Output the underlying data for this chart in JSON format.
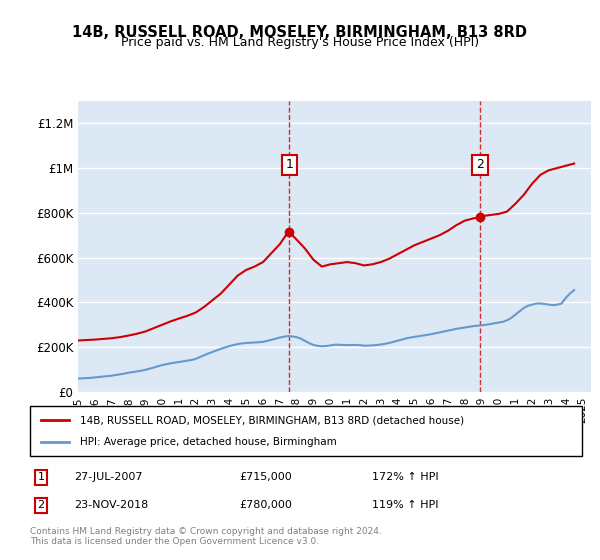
{
  "title": "14B, RUSSELL ROAD, MOSELEY, BIRMINGHAM, B13 8RD",
  "subtitle": "Price paid vs. HM Land Registry's House Price Index (HPI)",
  "ylabel_ticks": [
    "£0",
    "£200K",
    "£400K",
    "£600K",
    "£800K",
    "£1M",
    "£1.2M"
  ],
  "ytick_values": [
    0,
    200000,
    400000,
    600000,
    800000,
    1000000,
    1200000
  ],
  "ylim": [
    0,
    1300000
  ],
  "xlim_start": 1995.0,
  "xlim_end": 2025.5,
  "background_color": "#dde8f5",
  "plot_bg_color": "#dde8f5",
  "grid_color": "#ffffff",
  "sale1_x": 2007.57,
  "sale1_y": 715000,
  "sale1_label": "1",
  "sale1_date": "27-JUL-2007",
  "sale1_price": "£715,000",
  "sale1_hpi": "172% ↑ HPI",
  "sale2_x": 2018.9,
  "sale2_y": 780000,
  "sale2_label": "2",
  "sale2_date": "23-NOV-2018",
  "sale2_price": "£780,000",
  "sale2_hpi": "119% ↑ HPI",
  "line1_color": "#cc0000",
  "line2_color": "#6699cc",
  "legend1": "14B, RUSSELL ROAD, MOSELEY, BIRMINGHAM, B13 8RD (detached house)",
  "legend2": "HPI: Average price, detached house, Birmingham",
  "footer": "Contains HM Land Registry data © Crown copyright and database right 2024.\nThis data is licensed under the Open Government Licence v3.0.",
  "hpi_years": [
    1995.0,
    1995.25,
    1995.5,
    1995.75,
    1996.0,
    1996.25,
    1996.5,
    1996.75,
    1997.0,
    1997.25,
    1997.5,
    1997.75,
    1998.0,
    1998.25,
    1998.5,
    1998.75,
    1999.0,
    1999.25,
    1999.5,
    1999.75,
    2000.0,
    2000.25,
    2000.5,
    2000.75,
    2001.0,
    2001.25,
    2001.5,
    2001.75,
    2002.0,
    2002.25,
    2002.5,
    2002.75,
    2003.0,
    2003.25,
    2003.5,
    2003.75,
    2004.0,
    2004.25,
    2004.5,
    2004.75,
    2005.0,
    2005.25,
    2005.5,
    2005.75,
    2006.0,
    2006.25,
    2006.5,
    2006.75,
    2007.0,
    2007.25,
    2007.5,
    2007.75,
    2008.0,
    2008.25,
    2008.5,
    2008.75,
    2009.0,
    2009.25,
    2009.5,
    2009.75,
    2010.0,
    2010.25,
    2010.5,
    2010.75,
    2011.0,
    2011.25,
    2011.5,
    2011.75,
    2012.0,
    2012.25,
    2012.5,
    2012.75,
    2013.0,
    2013.25,
    2013.5,
    2013.75,
    2014.0,
    2014.25,
    2014.5,
    2014.75,
    2015.0,
    2015.25,
    2015.5,
    2015.75,
    2016.0,
    2016.25,
    2016.5,
    2016.75,
    2017.0,
    2017.25,
    2017.5,
    2017.75,
    2018.0,
    2018.25,
    2018.5,
    2018.75,
    2019.0,
    2019.25,
    2019.5,
    2019.75,
    2020.0,
    2020.25,
    2020.5,
    2020.75,
    2021.0,
    2021.25,
    2021.5,
    2021.75,
    2022.0,
    2022.25,
    2022.5,
    2022.75,
    2023.0,
    2023.25,
    2023.5,
    2023.75,
    2024.0,
    2024.25,
    2024.5
  ],
  "hpi_values": [
    60000,
    61000,
    62000,
    63000,
    65000,
    67000,
    69000,
    71000,
    73000,
    76000,
    79000,
    82000,
    86000,
    89000,
    92000,
    95000,
    99000,
    104000,
    109000,
    115000,
    120000,
    124000,
    128000,
    131000,
    134000,
    137000,
    140000,
    143000,
    148000,
    156000,
    164000,
    172000,
    179000,
    186000,
    193000,
    199000,
    205000,
    210000,
    214000,
    217000,
    219000,
    220000,
    221000,
    222000,
    224000,
    228000,
    233000,
    238000,
    243000,
    247000,
    250000,
    248000,
    245000,
    238000,
    228000,
    218000,
    210000,
    206000,
    204000,
    205000,
    208000,
    211000,
    211000,
    210000,
    209000,
    210000,
    210000,
    209000,
    207000,
    207000,
    208000,
    210000,
    212000,
    215000,
    219000,
    224000,
    229000,
    234000,
    239000,
    243000,
    246000,
    249000,
    252000,
    255000,
    258000,
    262000,
    266000,
    270000,
    274000,
    278000,
    282000,
    285000,
    288000,
    291000,
    294000,
    296000,
    298000,
    300000,
    303000,
    307000,
    310000,
    313000,
    320000,
    330000,
    345000,
    360000,
    375000,
    385000,
    390000,
    395000,
    395000,
    393000,
    390000,
    388000,
    390000,
    395000,
    420000,
    440000,
    455000
  ],
  "property_years": [
    1995.0,
    1995.5,
    1996.0,
    1996.5,
    1997.0,
    1997.5,
    1998.0,
    1998.5,
    1999.0,
    1999.5,
    2000.0,
    2000.5,
    2001.0,
    2001.5,
    2002.0,
    2002.5,
    2003.0,
    2003.5,
    2004.0,
    2004.5,
    2005.0,
    2005.5,
    2006.0,
    2006.5,
    2007.0,
    2007.5,
    2007.75,
    2008.0,
    2008.5,
    2009.0,
    2009.5,
    2010.0,
    2010.5,
    2011.0,
    2011.5,
    2012.0,
    2012.5,
    2013.0,
    2013.5,
    2014.0,
    2014.5,
    2015.0,
    2015.5,
    2016.0,
    2016.5,
    2017.0,
    2017.5,
    2018.0,
    2018.5,
    2018.9,
    2019.0,
    2019.5,
    2020.0,
    2020.5,
    2021.0,
    2021.5,
    2022.0,
    2022.5,
    2023.0,
    2023.5,
    2024.0,
    2024.5
  ],
  "property_values": [
    230000,
    232000,
    234000,
    237000,
    240000,
    245000,
    252000,
    260000,
    270000,
    285000,
    300000,
    315000,
    328000,
    340000,
    355000,
    380000,
    410000,
    440000,
    480000,
    520000,
    545000,
    560000,
    580000,
    620000,
    660000,
    715000,
    700000,
    680000,
    640000,
    590000,
    560000,
    570000,
    575000,
    580000,
    575000,
    565000,
    570000,
    580000,
    595000,
    615000,
    635000,
    655000,
    670000,
    685000,
    700000,
    720000,
    745000,
    765000,
    775000,
    780000,
    785000,
    790000,
    795000,
    805000,
    840000,
    880000,
    930000,
    970000,
    990000,
    1000000,
    1010000,
    1020000
  ]
}
